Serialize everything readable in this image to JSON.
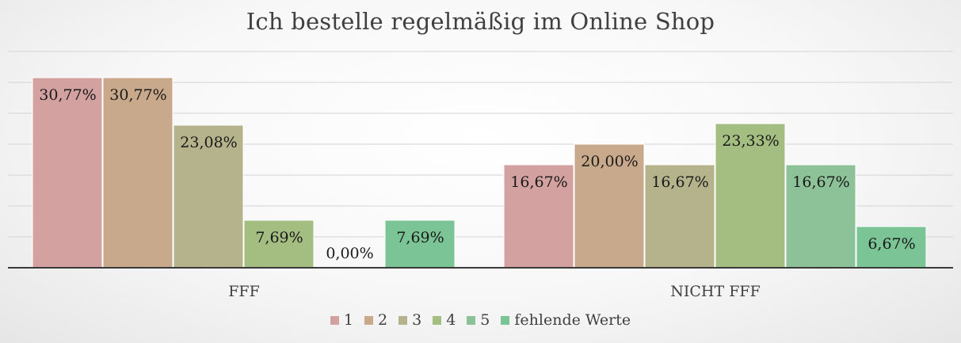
{
  "chart_data": {
    "type": "bar",
    "title": "Ich bestelle regelmäßig im Online Shop",
    "xlabel": "",
    "ylabel": "",
    "categories": [
      "FFF",
      "NICHT FFF"
    ],
    "ylim": [
      0,
      0.35
    ],
    "grid": true,
    "legend_position": "bottom",
    "series": [
      {
        "name": "1",
        "values": [
          0.3077,
          0.1667
        ],
        "labels": [
          "30,77%",
          "16,67%"
        ],
        "color": "#d4a1a1"
      },
      {
        "name": "2",
        "values": [
          0.3077,
          0.2
        ],
        "labels": [
          "30,77%",
          "20,00%"
        ],
        "color": "#c9a98b"
      },
      {
        "name": "3",
        "values": [
          0.2308,
          0.1667
        ],
        "labels": [
          "23,08%",
          "16,67%"
        ],
        "color": "#b5b38c"
      },
      {
        "name": "4",
        "values": [
          0.0769,
          0.2333
        ],
        "labels": [
          "7,69%",
          "23,33%"
        ],
        "color": "#a4bd81"
      },
      {
        "name": "5",
        "values": [
          0.0,
          0.1667
        ],
        "labels": [
          "0,00%",
          "16,67%"
        ],
        "color": "#8dc299"
      },
      {
        "name": "fehlende Werte",
        "values": [
          0.0769,
          0.0667
        ],
        "labels": [
          "7,69%",
          "6,67%"
        ],
        "color": "#7ac495"
      }
    ]
  }
}
